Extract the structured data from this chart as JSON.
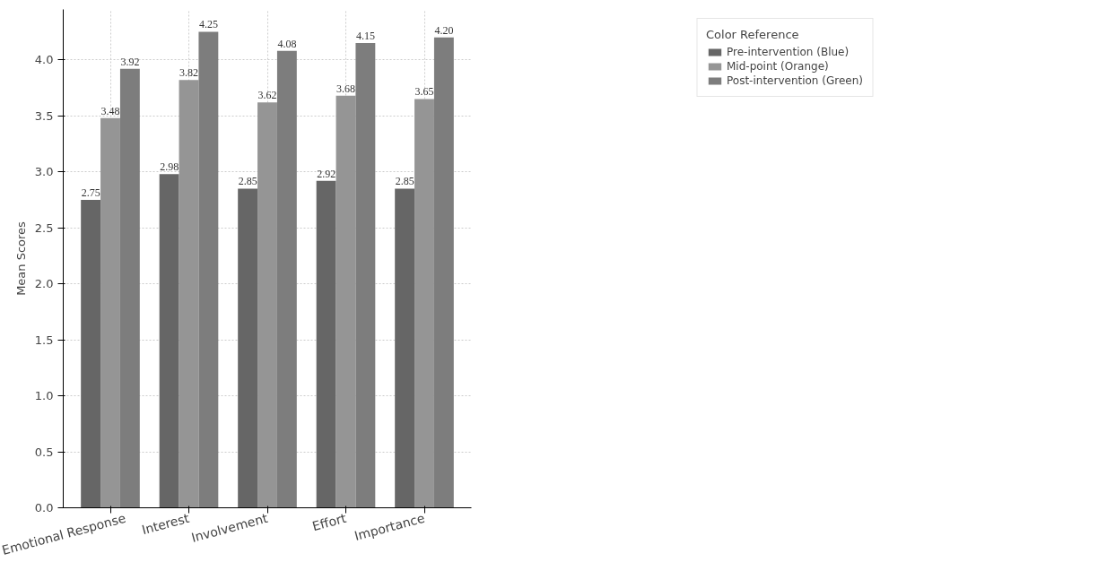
{
  "chart_data": {
    "type": "bar",
    "ylabel": "Mean Scores",
    "legend_title": "Color Reference",
    "categories": [
      "Emotional Response",
      "Interest",
      "Involvement",
      "Effort",
      "Importance"
    ],
    "series": [
      {
        "name": "Pre-intervention (Blue)",
        "color": "#666666",
        "values": [
          2.75,
          2.98,
          2.85,
          2.92,
          2.85
        ],
        "value_labels": [
          "2.75",
          "2.98",
          "2.85",
          "2.92",
          "2.85"
        ]
      },
      {
        "name": "Mid-point (Orange)",
        "color": "#959595",
        "values": [
          3.48,
          3.82,
          3.62,
          3.68,
          3.65
        ],
        "value_labels": [
          "3.48",
          "3.82",
          "3.62",
          "3.68",
          "3.65"
        ]
      },
      {
        "name": "Post-intervention (Green)",
        "color": "#7d7d7d",
        "values": [
          3.92,
          4.25,
          4.08,
          4.15,
          4.2
        ],
        "value_labels": [
          "3.92",
          "4.25",
          "4.08",
          "4.15",
          "4.20"
        ]
      }
    ],
    "ylim": [
      0,
      4.45
    ],
    "yticks": [
      {
        "value": 0,
        "label": "0.0"
      },
      {
        "value": 0.5,
        "label": "0.5"
      },
      {
        "value": 1,
        "label": "1.0"
      },
      {
        "value": 1.5,
        "label": "1.5"
      },
      {
        "value": 2,
        "label": "2.0"
      },
      {
        "value": 2.5,
        "label": "2.5"
      },
      {
        "value": 3,
        "label": "3.0"
      },
      {
        "value": 3.5,
        "label": "3.5"
      },
      {
        "value": 4,
        "label": "4.0"
      }
    ],
    "grid": true,
    "legend": "top right"
  }
}
